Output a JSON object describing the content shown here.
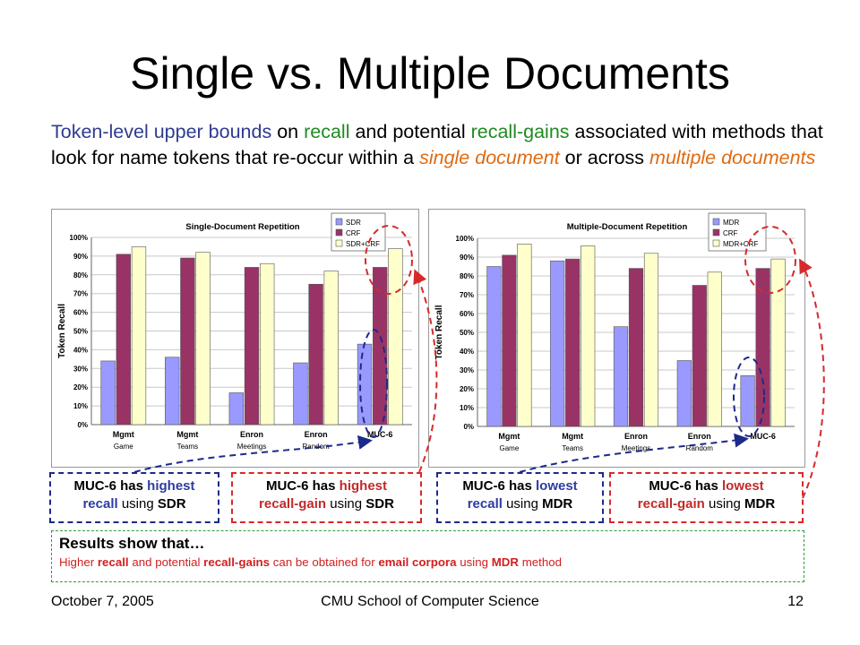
{
  "slide": {
    "title": "Single vs. Multiple Documents",
    "subtitle_parts": [
      {
        "text": "Token-level upper bounds",
        "cls": "blue"
      },
      {
        "text": " on ",
        "cls": ""
      },
      {
        "text": "recall",
        "cls": "green"
      },
      {
        "text": " and potential ",
        "cls": ""
      },
      {
        "text": "recall-gains",
        "cls": "green"
      },
      {
        "text": " associated with methods that look for name tokens that re-occur within a ",
        "cls": ""
      },
      {
        "text": "single document",
        "cls": "orange i"
      },
      {
        "text": " or across ",
        "cls": ""
      },
      {
        "text": "multiple documents",
        "cls": "orange i"
      }
    ],
    "callouts": [
      {
        "pre": "MUC-6 has ",
        "hl": "highest",
        "post1": "recall",
        "post2": " using ",
        "tail": "SDR",
        "style": "navy"
      },
      {
        "pre": "MUC-6 has ",
        "hl": "highest",
        "post1": "recall-gain",
        "post2": " using ",
        "tail": "SDR",
        "style": "red"
      },
      {
        "pre": "MUC-6 has ",
        "hl": "lowest",
        "post1": "recall",
        "post2": " using ",
        "tail": "MDR",
        "style": "navy"
      },
      {
        "pre": "MUC-6 has ",
        "hl": "lowest",
        "post1": "recall-gain",
        "post2": " using ",
        "tail": "MDR",
        "style": "red"
      }
    ],
    "results": {
      "heading": "Results show that…",
      "body_parts": [
        {
          "text": "Higher ",
          "t": "red"
        },
        {
          "text": "recall",
          "t": "redb"
        },
        {
          "text": " and potential ",
          "t": "red"
        },
        {
          "text": "recall-gains",
          "t": "redb"
        },
        {
          "text": " can be obtained for ",
          "t": "red"
        },
        {
          "text": "email corpora",
          "t": "redb"
        },
        {
          "text": " using ",
          "t": "red"
        },
        {
          "text": "MDR",
          "t": "redb"
        },
        {
          "text": " method",
          "t": "red"
        }
      ]
    },
    "footer": {
      "date": "October 7, 2005",
      "org": "CMU School of Computer Science",
      "page": "12"
    }
  },
  "chart_data": [
    {
      "type": "bar",
      "title": "Single-Document Repetition",
      "ylabel": "Token Recall",
      "ylim": [
        0,
        100
      ],
      "yticks": [
        "0%",
        "10%",
        "20%",
        "30%",
        "40%",
        "50%",
        "60%",
        "70%",
        "80%",
        "90%",
        "100%"
      ],
      "categories": [
        "Mgmt Game",
        "Mgmt Teams",
        "Enron Meetings",
        "Enron Random",
        "MUC-6"
      ],
      "series": [
        {
          "name": "SDR",
          "color": "#9999ff",
          "values": [
            34,
            36,
            17,
            33,
            43
          ]
        },
        {
          "name": "CRF",
          "color": "#993366",
          "values": [
            91,
            89,
            84,
            75,
            84
          ]
        },
        {
          "name": "SDR+CRF",
          "color": "#ffffcc",
          "values": [
            95,
            92,
            86,
            82,
            94
          ]
        }
      ],
      "legend": "top-right",
      "grid": true
    },
    {
      "type": "bar",
      "title": "Multiple-Document Repetition",
      "ylabel": "Token Recall",
      "ylim": [
        0,
        100
      ],
      "yticks": [
        "0%",
        "10%",
        "20%",
        "30%",
        "40%",
        "50%",
        "60%",
        "70%",
        "80%",
        "90%",
        "100%"
      ],
      "categories": [
        "Mgmt Game",
        "Mgmt Teams",
        "Enron Meetings",
        "Enron Random",
        "MUC-6"
      ],
      "series": [
        {
          "name": "MDR",
          "color": "#9999ff",
          "values": [
            85,
            88,
            53,
            35,
            27
          ]
        },
        {
          "name": "CRF",
          "color": "#993366",
          "values": [
            91,
            89,
            84,
            75,
            84
          ]
        },
        {
          "name": "MDR+CRF",
          "color": "#ffffcc",
          "values": [
            97,
            96,
            92,
            82,
            89
          ]
        }
      ],
      "legend": "top-right",
      "grid": true
    }
  ]
}
